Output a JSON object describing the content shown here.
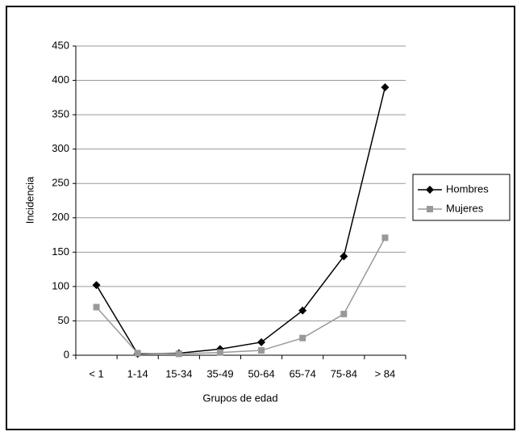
{
  "chart_data": {
    "type": "line",
    "y_label": "Incidencia",
    "x_label": "Grupos de edad",
    "categories": [
      "< 1",
      "1-14",
      "15-34",
      "35-49",
      "50-64",
      "65-74",
      "75-84",
      "> 84"
    ],
    "series": [
      {
        "name": "Hombres",
        "color": "#000000",
        "marker": "diamond",
        "values": [
          102,
          2,
          3,
          9,
          19,
          65,
          144,
          390
        ]
      },
      {
        "name": "Mujeres",
        "color": "#999999",
        "marker": "square",
        "values": [
          70,
          3,
          2,
          4,
          7,
          25,
          60,
          171
        ]
      }
    ],
    "ylim": [
      0,
      450
    ],
    "yticks": [
      0,
      50,
      100,
      150,
      200,
      250,
      300,
      350,
      400,
      450
    ],
    "grid": true,
    "legend": "right"
  }
}
